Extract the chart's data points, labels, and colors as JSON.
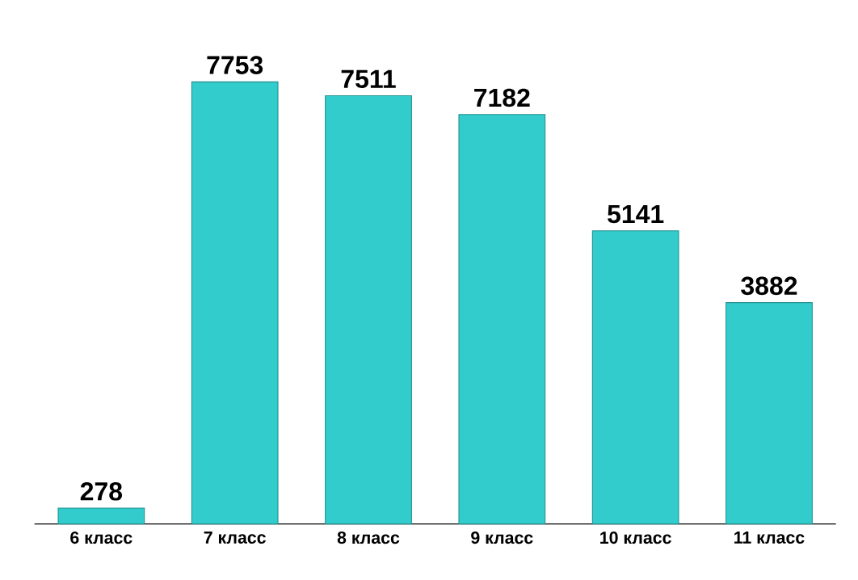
{
  "chart_data": {
    "type": "bar",
    "categories": [
      "6 класс",
      "7 класс",
      "8 класс",
      "9 класс",
      "10 класс",
      "11 класс"
    ],
    "values": [
      278,
      7753,
      7511,
      7182,
      5141,
      3882
    ],
    "color": "#33cccc",
    "data_labels": true
  }
}
